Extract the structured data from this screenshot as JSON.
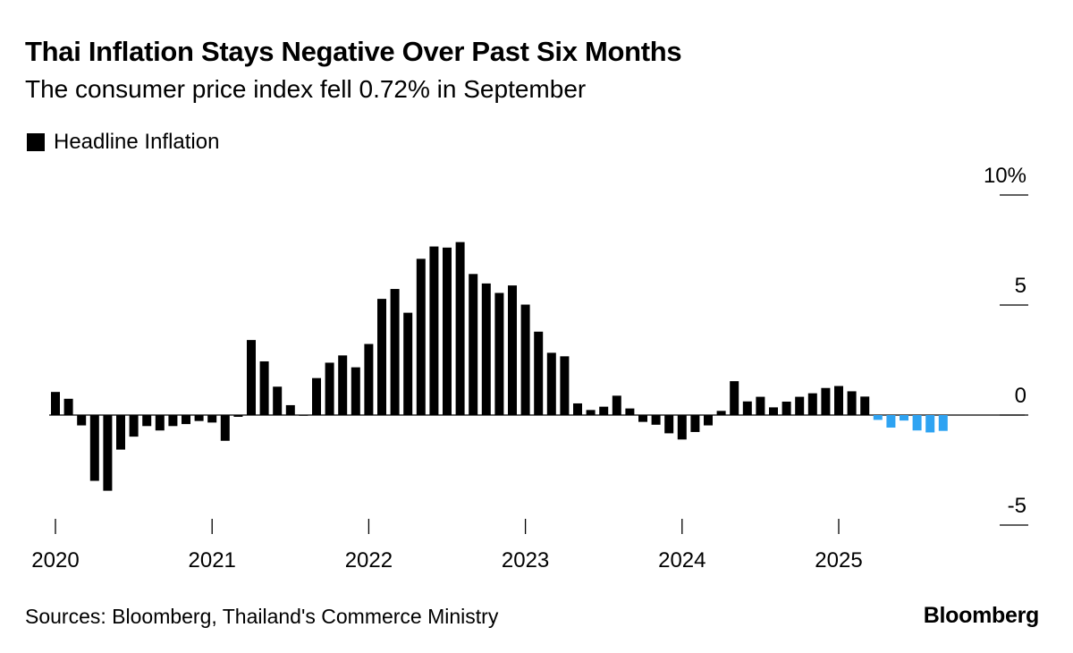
{
  "header": {
    "title": "Thai Inflation Stays Negative Over Past Six Months",
    "subtitle": "The consumer price index fell 0.72% in September"
  },
  "legend": {
    "label": "Headline Inflation",
    "color": "#000000"
  },
  "footer": {
    "source": "Sources: Bloomberg, Thailand's Commerce Ministry",
    "brand": "Bloomberg"
  },
  "chart_data": {
    "type": "bar",
    "title": "Thai Inflation Stays Negative Over Past Six Months",
    "subtitle": "The consumer price index fell 0.72% in September",
    "series": [
      {
        "name": "Headline Inflation",
        "color": "#000000",
        "highlight_color": "#2ea3f2",
        "start": "2020-01",
        "values": [
          1.05,
          0.74,
          -0.47,
          -2.99,
          -3.44,
          -1.57,
          -0.98,
          -0.5,
          -0.7,
          -0.5,
          -0.41,
          -0.27,
          -0.34,
          -1.17,
          -0.08,
          3.41,
          2.44,
          1.29,
          0.45,
          -0.02,
          1.68,
          2.38,
          2.71,
          2.17,
          3.23,
          5.28,
          5.73,
          4.65,
          7.1,
          7.66,
          7.61,
          7.86,
          6.41,
          5.98,
          5.55,
          5.89,
          5.02,
          3.79,
          2.83,
          2.67,
          0.53,
          0.23,
          0.38,
          0.88,
          0.3,
          -0.31,
          -0.44,
          -0.83,
          -1.11,
          -0.77,
          -0.47,
          0.19,
          1.54,
          0.62,
          0.83,
          0.35,
          0.61,
          0.83,
          0.99,
          1.23,
          1.32,
          1.08,
          0.84,
          -0.22,
          -0.57,
          -0.25,
          -0.7,
          -0.79,
          -0.72
        ],
        "highlight_from_index": 63
      }
    ],
    "xlabel": "",
    "ylabel": "",
    "ylim": [
      -5,
      10
    ],
    "yticks": [
      "10%",
      "5",
      "0",
      "-5"
    ],
    "ytick_values": [
      10,
      5,
      0,
      -5
    ],
    "xticks": [
      "2020",
      "2021",
      "2022",
      "2023",
      "2024",
      "2025"
    ],
    "grid": false,
    "legend_position": "top-left"
  }
}
